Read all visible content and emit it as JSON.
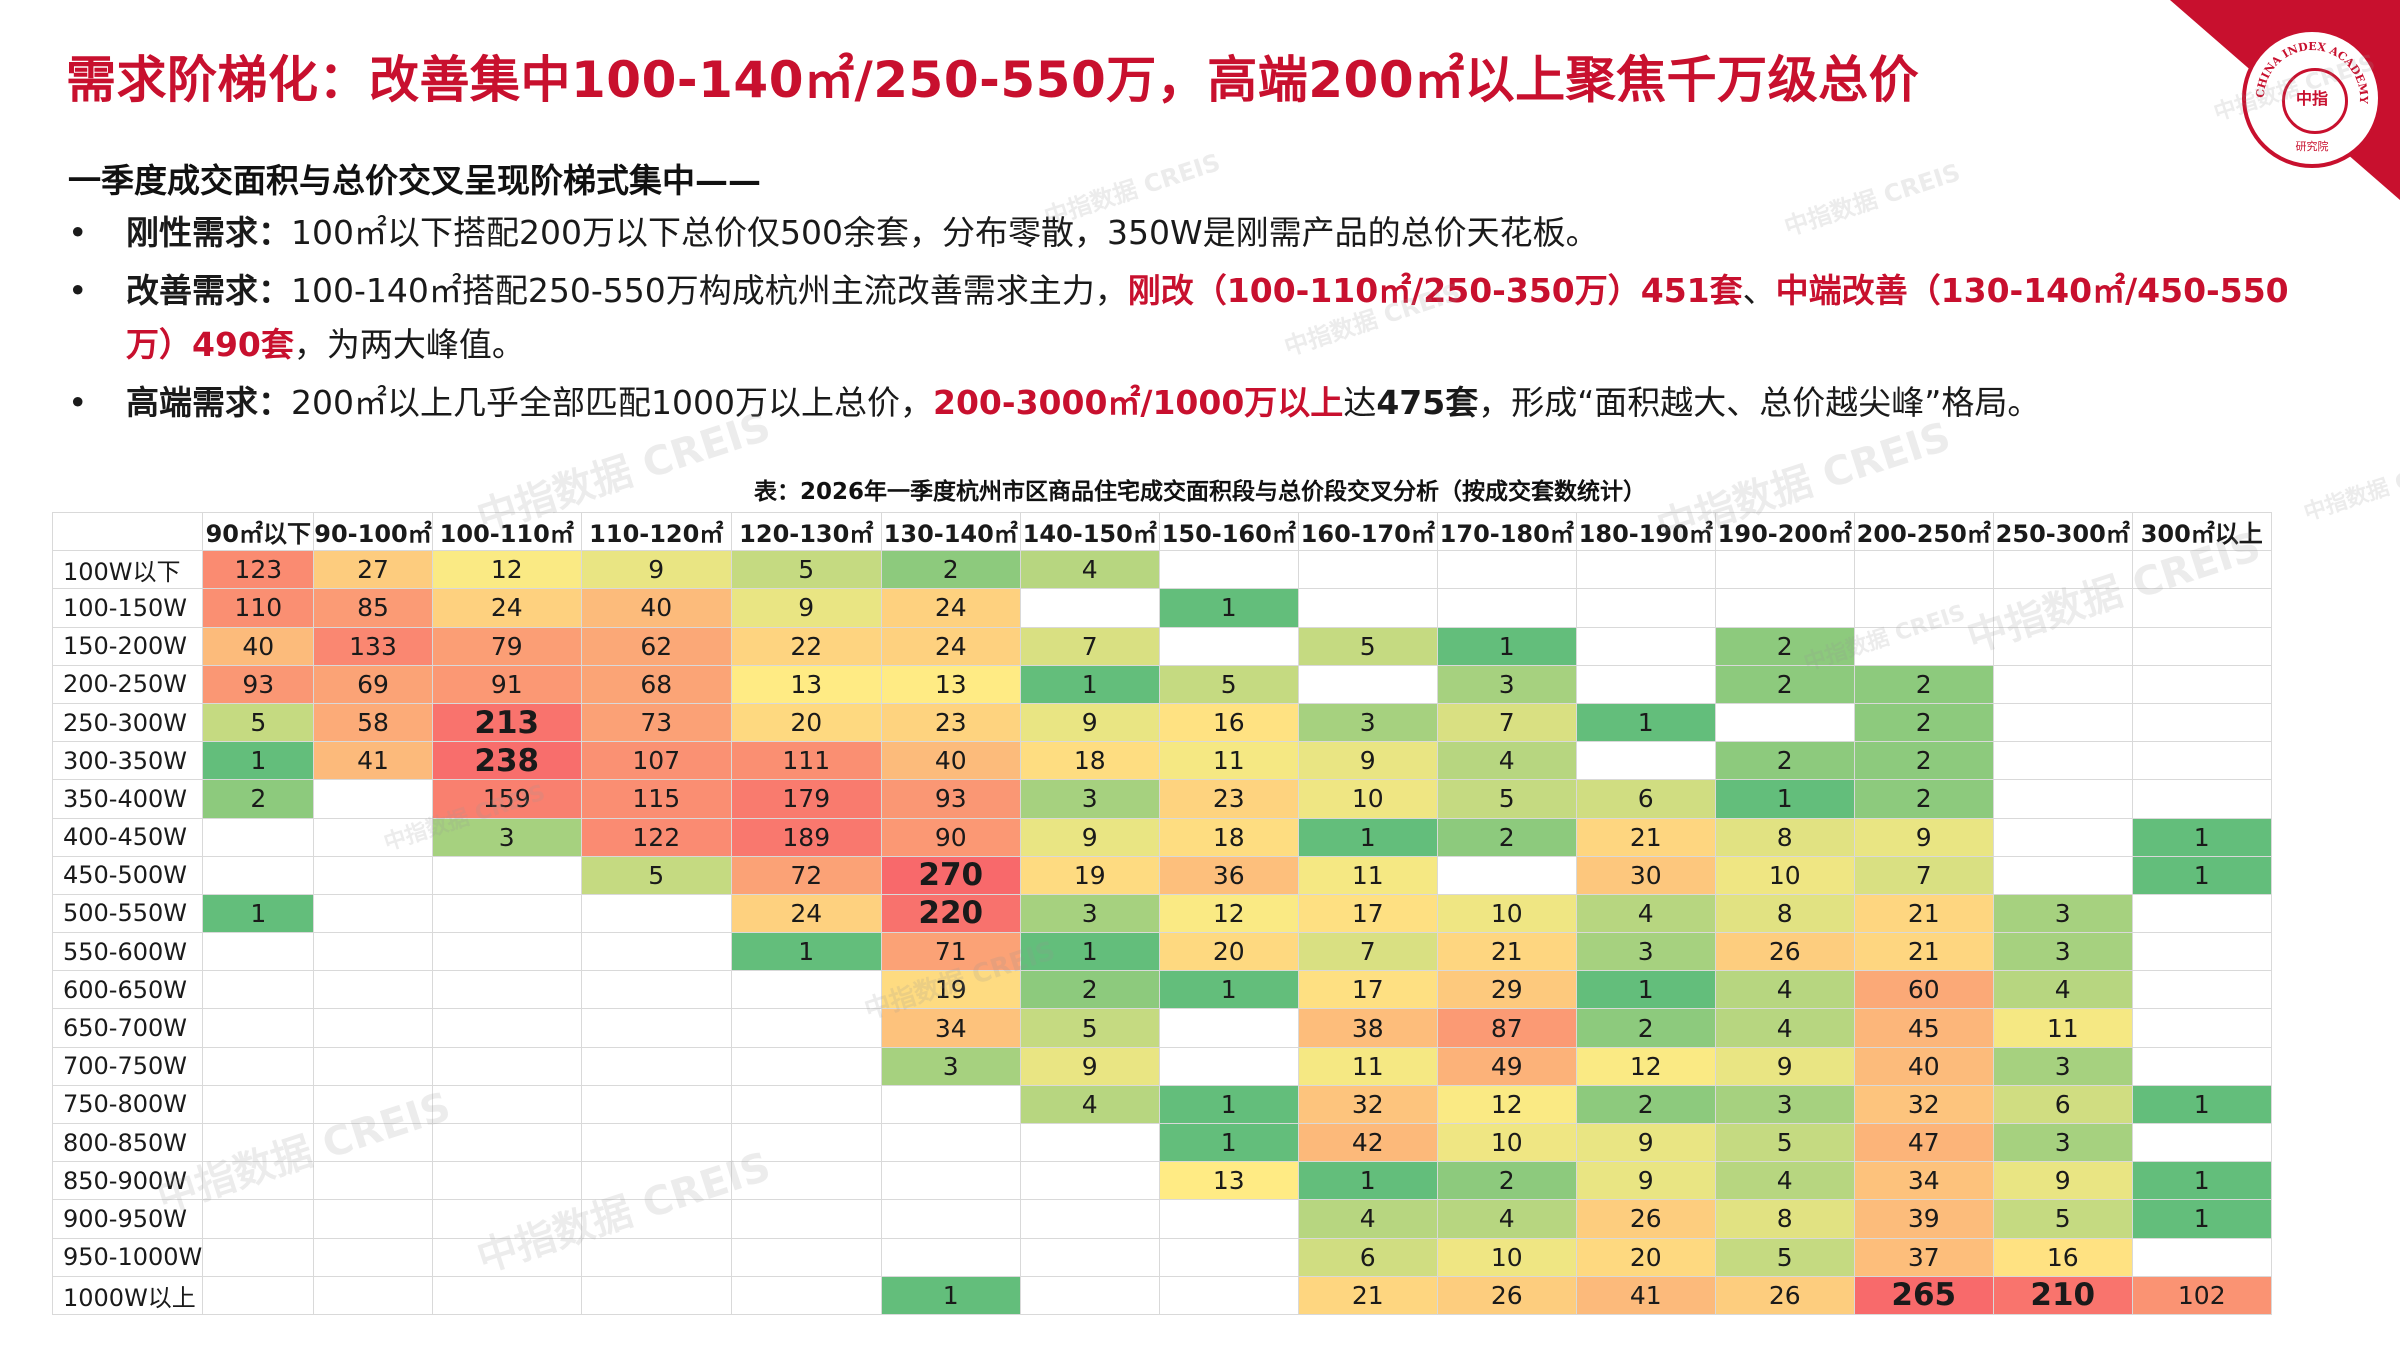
{
  "title": "需求阶梯化：改善集中100-140㎡/250-550万，高端200㎡以上聚焦千万级总价",
  "subheading": "一季度成交面积与总价交叉呈现阶梯式集中——",
  "bullets": [
    {
      "dot": "•",
      "label": "刚性需求：",
      "text": "100㎡以下搭配200万以下总价仅500余套，分布零散，350W是刚需产品的总价天花板。"
    },
    {
      "dot": "•",
      "label": "改善需求：",
      "text_a": "100-140㎡搭配250-550万构成杭州主流改善需求主力，",
      "red_a": "刚改（100-110㎡/250-350万）451套",
      "text_b": "、",
      "red_b": "中端改善（130-140㎡/450-550万）490套",
      "text_c": "，为两大峰值。"
    },
    {
      "dot": "•",
      "label": "高端需求：",
      "text_a": "200㎡以上几乎全部匹配1000万以上总价，",
      "red_a": "200-3000㎡/1000万以上",
      "text_b": "达",
      "bold_b": "475套",
      "text_c": "，形成“面积越大、总价越尖峰”格局。"
    }
  ],
  "table_caption": "表：2026年一季度杭州市区商品住宅成交面积段与总价段交叉分析（按成交套数统计）",
  "watermark": {
    "cn": "中指数据",
    "en": "CREIS"
  },
  "logo": {
    "ring_text": "CHINA INDEX ACADEMY",
    "center": "中指",
    "bottom": "研究院"
  },
  "colors": {
    "accent": "#c8102e"
  },
  "table": {
    "columns": [
      "90㎡以下",
      "90-100㎡",
      "100-110㎡",
      "110-120㎡",
      "120-130㎡",
      "130-140㎡",
      "140-150㎡",
      "150-160㎡",
      "160-170㎡",
      "170-180㎡",
      "180-190㎡",
      "190-200㎡",
      "200-250㎡",
      "250-300㎡",
      "300㎡以上"
    ],
    "rows": [
      {
        "label": "100W以下",
        "cells": [
          123,
          27,
          12,
          9,
          5,
          2,
          4,
          null,
          null,
          null,
          null,
          null,
          null,
          null,
          null
        ]
      },
      {
        "label": "100-150W",
        "cells": [
          110,
          85,
          24,
          40,
          9,
          24,
          null,
          1,
          null,
          null,
          null,
          null,
          null,
          null,
          null
        ]
      },
      {
        "label": "150-200W",
        "cells": [
          40,
          133,
          79,
          62,
          22,
          24,
          7,
          null,
          5,
          1,
          null,
          2,
          null,
          null,
          null
        ]
      },
      {
        "label": "200-250W",
        "cells": [
          93,
          69,
          91,
          68,
          13,
          13,
          1,
          5,
          null,
          3,
          null,
          2,
          2,
          null,
          null
        ]
      },
      {
        "label": "250-300W",
        "cells": [
          5,
          58,
          213,
          73,
          20,
          23,
          9,
          16,
          3,
          7,
          1,
          null,
          2,
          null,
          null
        ]
      },
      {
        "label": "300-350W",
        "cells": [
          1,
          41,
          238,
          107,
          111,
          40,
          18,
          11,
          9,
          4,
          null,
          2,
          2,
          null,
          null
        ]
      },
      {
        "label": "350-400W",
        "cells": [
          2,
          null,
          159,
          115,
          179,
          93,
          3,
          23,
          10,
          5,
          6,
          1,
          2,
          null,
          null
        ]
      },
      {
        "label": "400-450W",
        "cells": [
          null,
          null,
          3,
          122,
          189,
          90,
          9,
          18,
          1,
          2,
          21,
          8,
          9,
          null,
          1
        ]
      },
      {
        "label": "450-500W",
        "cells": [
          null,
          null,
          null,
          5,
          72,
          270,
          19,
          36,
          11,
          null,
          30,
          10,
          7,
          null,
          1
        ]
      },
      {
        "label": "500-550W",
        "cells": [
          1,
          null,
          null,
          null,
          24,
          220,
          3,
          12,
          17,
          10,
          4,
          8,
          21,
          3,
          null
        ]
      },
      {
        "label": "550-600W",
        "cells": [
          null,
          null,
          null,
          null,
          1,
          71,
          1,
          20,
          7,
          21,
          3,
          26,
          21,
          3,
          null
        ]
      },
      {
        "label": "600-650W",
        "cells": [
          null,
          null,
          null,
          null,
          null,
          19,
          2,
          1,
          17,
          29,
          1,
          4,
          60,
          4,
          null
        ]
      },
      {
        "label": "650-700W",
        "cells": [
          null,
          null,
          null,
          null,
          null,
          34,
          5,
          null,
          38,
          87,
          2,
          4,
          45,
          11,
          null
        ]
      },
      {
        "label": "700-750W",
        "cells": [
          null,
          null,
          null,
          null,
          null,
          3,
          9,
          null,
          11,
          49,
          12,
          9,
          40,
          3,
          null
        ]
      },
      {
        "label": "750-800W",
        "cells": [
          null,
          null,
          null,
          null,
          null,
          null,
          4,
          1,
          32,
          12,
          2,
          3,
          32,
          6,
          1
        ]
      },
      {
        "label": "800-850W",
        "cells": [
          null,
          null,
          null,
          null,
          null,
          null,
          null,
          1,
          42,
          10,
          9,
          5,
          47,
          3,
          null
        ]
      },
      {
        "label": "850-900W",
        "cells": [
          null,
          null,
          null,
          null,
          null,
          null,
          null,
          13,
          1,
          2,
          9,
          4,
          34,
          9,
          1
        ]
      },
      {
        "label": "900-950W",
        "cells": [
          null,
          null,
          null,
          null,
          null,
          null,
          null,
          null,
          4,
          4,
          26,
          8,
          39,
          5,
          1
        ]
      },
      {
        "label": "950-1000W",
        "cells": [
          null,
          null,
          null,
          null,
          null,
          null,
          null,
          null,
          6,
          10,
          20,
          5,
          37,
          16,
          null
        ]
      },
      {
        "label": "1000W以上",
        "cells": [
          null,
          null,
          null,
          null,
          null,
          1,
          null,
          null,
          21,
          26,
          41,
          26,
          265,
          210,
          102
        ]
      }
    ],
    "highlight_threshold": 200
  }
}
